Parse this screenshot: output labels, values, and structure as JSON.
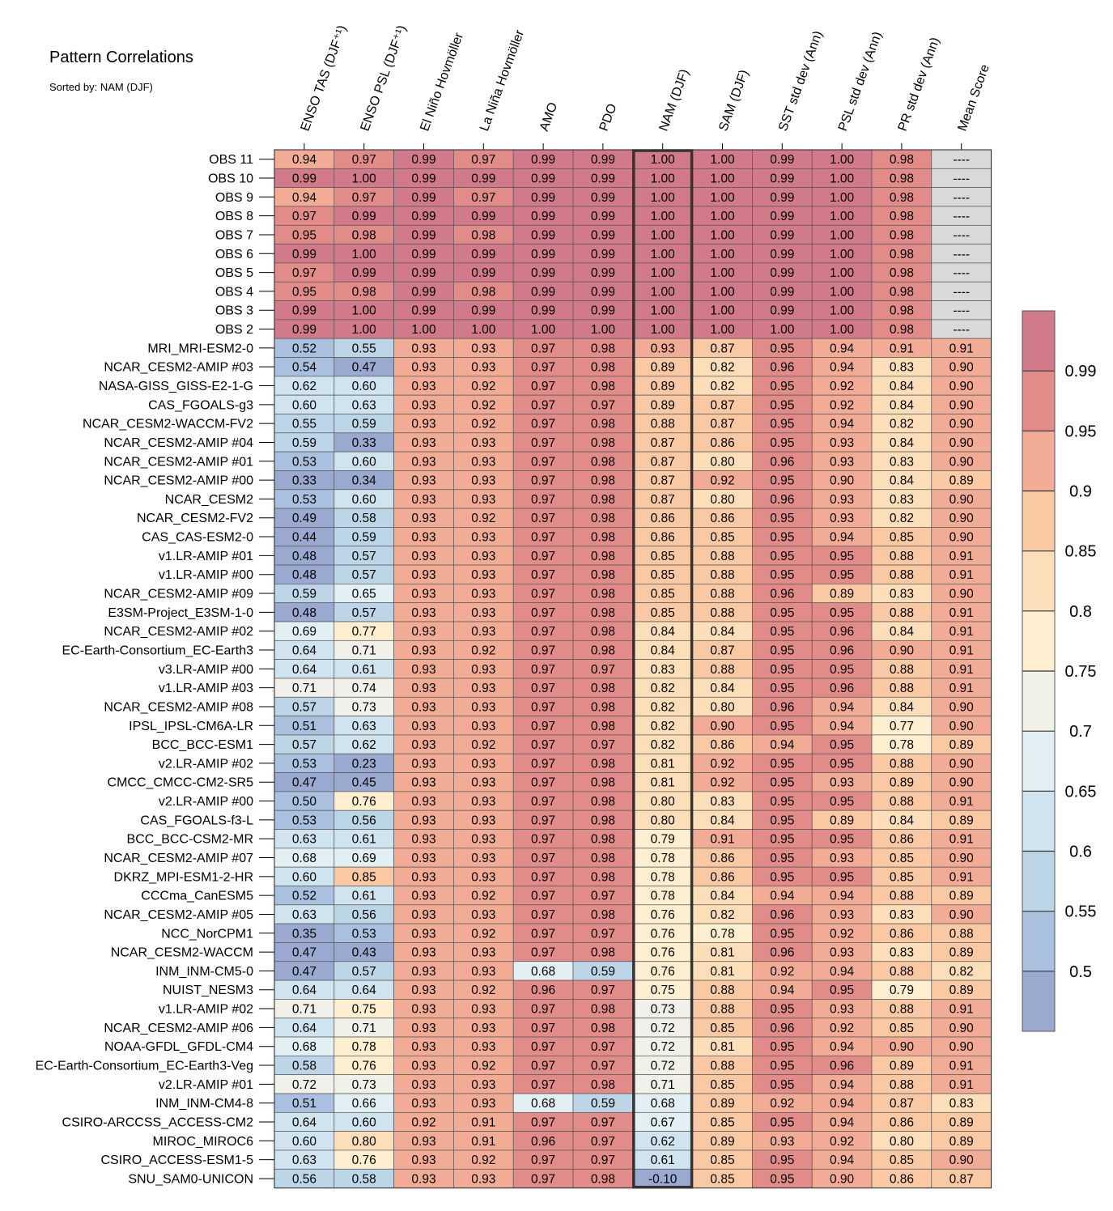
{
  "chart_data": {
    "type": "heatmap",
    "title": "Pattern Correlations",
    "subtitle": "Sorted by: NAM (DJF)",
    "columns": [
      "ENSO TAS (DJF⁺¹)",
      "ENSO PSL (DJF⁺¹)",
      "El Niño Hovmöller",
      "La Niña Hovmöller",
      "AMO",
      "PDO",
      "NAM (DJF)",
      "SAM (DJF)",
      "SST std dev (Ann)",
      "PSL std dev (Ann)",
      "PR std dev (Ann)",
      "Mean Score"
    ],
    "highlighted_column": "NAM (DJF)",
    "rows": [
      {
        "name": "OBS 11",
        "values": [
          "0.94",
          "0.97",
          "0.99",
          "0.97",
          "0.99",
          "0.99",
          "1.00",
          "1.00",
          "0.99",
          "1.00",
          "0.98",
          "----"
        ]
      },
      {
        "name": "OBS 10",
        "values": [
          "0.99",
          "1.00",
          "0.99",
          "0.99",
          "0.99",
          "0.99",
          "1.00",
          "1.00",
          "0.99",
          "1.00",
          "0.98",
          "----"
        ]
      },
      {
        "name": "OBS 9",
        "values": [
          "0.94",
          "0.97",
          "0.99",
          "0.97",
          "0.99",
          "0.99",
          "1.00",
          "1.00",
          "0.99",
          "1.00",
          "0.98",
          "----"
        ]
      },
      {
        "name": "OBS 8",
        "values": [
          "0.97",
          "0.99",
          "0.99",
          "0.99",
          "0.99",
          "0.99",
          "1.00",
          "1.00",
          "0.99",
          "1.00",
          "0.98",
          "----"
        ]
      },
      {
        "name": "OBS 7",
        "values": [
          "0.95",
          "0.98",
          "0.99",
          "0.98",
          "0.99",
          "0.99",
          "1.00",
          "1.00",
          "0.99",
          "1.00",
          "0.98",
          "----"
        ]
      },
      {
        "name": "OBS 6",
        "values": [
          "0.99",
          "1.00",
          "0.99",
          "0.99",
          "0.99",
          "0.99",
          "1.00",
          "1.00",
          "0.99",
          "1.00",
          "0.98",
          "----"
        ]
      },
      {
        "name": "OBS 5",
        "values": [
          "0.97",
          "0.99",
          "0.99",
          "0.99",
          "0.99",
          "0.99",
          "1.00",
          "1.00",
          "0.99",
          "1.00",
          "0.98",
          "----"
        ]
      },
      {
        "name": "OBS 4",
        "values": [
          "0.95",
          "0.98",
          "0.99",
          "0.98",
          "0.99",
          "0.99",
          "1.00",
          "1.00",
          "0.99",
          "1.00",
          "0.98",
          "----"
        ]
      },
      {
        "name": "OBS 3",
        "values": [
          "0.99",
          "1.00",
          "0.99",
          "0.99",
          "0.99",
          "0.99",
          "1.00",
          "1.00",
          "0.99",
          "1.00",
          "0.98",
          "----"
        ]
      },
      {
        "name": "OBS 2",
        "values": [
          "0.99",
          "1.00",
          "1.00",
          "1.00",
          "1.00",
          "1.00",
          "1.00",
          "1.00",
          "1.00",
          "1.00",
          "0.98",
          "----"
        ]
      },
      {
        "name": "MRI_MRI-ESM2-0",
        "values": [
          "0.52",
          "0.55",
          "0.93",
          "0.93",
          "0.97",
          "0.98",
          "0.93",
          "0.87",
          "0.95",
          "0.94",
          "0.91",
          "0.91"
        ]
      },
      {
        "name": "NCAR_CESM2-AMIP  #03",
        "values": [
          "0.54",
          "0.47",
          "0.93",
          "0.93",
          "0.97",
          "0.98",
          "0.89",
          "0.82",
          "0.96",
          "0.94",
          "0.83",
          "0.90"
        ]
      },
      {
        "name": "NASA-GISS_GISS-E2-1-G",
        "values": [
          "0.62",
          "0.60",
          "0.93",
          "0.92",
          "0.97",
          "0.98",
          "0.89",
          "0.82",
          "0.95",
          "0.92",
          "0.84",
          "0.90"
        ]
      },
      {
        "name": "CAS_FGOALS-g3",
        "values": [
          "0.60",
          "0.63",
          "0.93",
          "0.92",
          "0.97",
          "0.97",
          "0.89",
          "0.87",
          "0.95",
          "0.92",
          "0.84",
          "0.90"
        ]
      },
      {
        "name": "NCAR_CESM2-WACCM-FV2",
        "values": [
          "0.55",
          "0.59",
          "0.93",
          "0.92",
          "0.97",
          "0.98",
          "0.88",
          "0.87",
          "0.95",
          "0.94",
          "0.82",
          "0.90"
        ]
      },
      {
        "name": "NCAR_CESM2-AMIP  #04",
        "values": [
          "0.59",
          "0.33",
          "0.93",
          "0.93",
          "0.97",
          "0.98",
          "0.87",
          "0.86",
          "0.95",
          "0.93",
          "0.84",
          "0.90"
        ]
      },
      {
        "name": "NCAR_CESM2-AMIP  #01",
        "values": [
          "0.53",
          "0.60",
          "0.93",
          "0.93",
          "0.97",
          "0.98",
          "0.87",
          "0.80",
          "0.96",
          "0.93",
          "0.83",
          "0.90"
        ]
      },
      {
        "name": "NCAR_CESM2-AMIP  #00",
        "values": [
          "0.33",
          "0.34",
          "0.93",
          "0.93",
          "0.97",
          "0.98",
          "0.87",
          "0.92",
          "0.95",
          "0.90",
          "0.84",
          "0.89"
        ]
      },
      {
        "name": "NCAR_CESM2",
        "values": [
          "0.53",
          "0.60",
          "0.93",
          "0.93",
          "0.97",
          "0.98",
          "0.87",
          "0.80",
          "0.96",
          "0.93",
          "0.83",
          "0.90"
        ]
      },
      {
        "name": "NCAR_CESM2-FV2",
        "values": [
          "0.49",
          "0.58",
          "0.93",
          "0.92",
          "0.97",
          "0.98",
          "0.86",
          "0.86",
          "0.95",
          "0.93",
          "0.82",
          "0.90"
        ]
      },
      {
        "name": "CAS_CAS-ESM2-0",
        "values": [
          "0.44",
          "0.59",
          "0.93",
          "0.93",
          "0.97",
          "0.98",
          "0.86",
          "0.85",
          "0.95",
          "0.94",
          "0.85",
          "0.90"
        ]
      },
      {
        "name": "v1.LR-AMIP  #01",
        "values": [
          "0.48",
          "0.57",
          "0.93",
          "0.93",
          "0.97",
          "0.98",
          "0.85",
          "0.88",
          "0.95",
          "0.95",
          "0.88",
          "0.91"
        ]
      },
      {
        "name": "v1.LR-AMIP  #00",
        "values": [
          "0.48",
          "0.57",
          "0.93",
          "0.93",
          "0.97",
          "0.98",
          "0.85",
          "0.88",
          "0.95",
          "0.95",
          "0.88",
          "0.91"
        ]
      },
      {
        "name": "NCAR_CESM2-AMIP  #09",
        "values": [
          "0.59",
          "0.65",
          "0.93",
          "0.93",
          "0.97",
          "0.98",
          "0.85",
          "0.88",
          "0.96",
          "0.89",
          "0.83",
          "0.90"
        ]
      },
      {
        "name": "E3SM-Project_E3SM-1-0",
        "values": [
          "0.48",
          "0.57",
          "0.93",
          "0.93",
          "0.97",
          "0.98",
          "0.85",
          "0.88",
          "0.95",
          "0.95",
          "0.88",
          "0.91"
        ]
      },
      {
        "name": "NCAR_CESM2-AMIP  #02",
        "values": [
          "0.69",
          "0.77",
          "0.93",
          "0.93",
          "0.97",
          "0.98",
          "0.84",
          "0.84",
          "0.95",
          "0.96",
          "0.84",
          "0.91"
        ]
      },
      {
        "name": "EC-Earth-Consortium_EC-Earth3",
        "values": [
          "0.64",
          "0.71",
          "0.93",
          "0.92",
          "0.97",
          "0.98",
          "0.84",
          "0.87",
          "0.95",
          "0.96",
          "0.90",
          "0.91"
        ]
      },
      {
        "name": "v3.LR-AMIP  #00",
        "values": [
          "0.64",
          "0.61",
          "0.93",
          "0.93",
          "0.97",
          "0.97",
          "0.83",
          "0.88",
          "0.95",
          "0.95",
          "0.88",
          "0.91"
        ]
      },
      {
        "name": "v1.LR-AMIP  #03",
        "values": [
          "0.71",
          "0.74",
          "0.93",
          "0.93",
          "0.97",
          "0.98",
          "0.82",
          "0.84",
          "0.95",
          "0.96",
          "0.88",
          "0.91"
        ]
      },
      {
        "name": "NCAR_CESM2-AMIP  #08",
        "values": [
          "0.57",
          "0.73",
          "0.93",
          "0.93",
          "0.97",
          "0.98",
          "0.82",
          "0.80",
          "0.96",
          "0.94",
          "0.84",
          "0.90"
        ]
      },
      {
        "name": "IPSL_IPSL-CM6A-LR",
        "values": [
          "0.51",
          "0.63",
          "0.93",
          "0.93",
          "0.97",
          "0.98",
          "0.82",
          "0.90",
          "0.95",
          "0.94",
          "0.77",
          "0.90"
        ]
      },
      {
        "name": "BCC_BCC-ESM1",
        "values": [
          "0.57",
          "0.62",
          "0.93",
          "0.92",
          "0.97",
          "0.97",
          "0.82",
          "0.86",
          "0.94",
          "0.95",
          "0.78",
          "0.89"
        ]
      },
      {
        "name": "v2.LR-AMIP  #02",
        "values": [
          "0.53",
          "0.23",
          "0.93",
          "0.93",
          "0.97",
          "0.98",
          "0.81",
          "0.92",
          "0.95",
          "0.95",
          "0.88",
          "0.90"
        ]
      },
      {
        "name": "CMCC_CMCC-CM2-SR5",
        "values": [
          "0.47",
          "0.45",
          "0.93",
          "0.93",
          "0.97",
          "0.98",
          "0.81",
          "0.92",
          "0.95",
          "0.93",
          "0.89",
          "0.90"
        ]
      },
      {
        "name": "v2.LR-AMIP  #00",
        "values": [
          "0.50",
          "0.76",
          "0.93",
          "0.93",
          "0.97",
          "0.98",
          "0.80",
          "0.83",
          "0.95",
          "0.95",
          "0.88",
          "0.91"
        ]
      },
      {
        "name": "CAS_FGOALS-f3-L",
        "values": [
          "0.53",
          "0.56",
          "0.93",
          "0.93",
          "0.97",
          "0.98",
          "0.80",
          "0.84",
          "0.95",
          "0.89",
          "0.84",
          "0.89"
        ]
      },
      {
        "name": "BCC_BCC-CSM2-MR",
        "values": [
          "0.63",
          "0.61",
          "0.93",
          "0.93",
          "0.97",
          "0.98",
          "0.79",
          "0.91",
          "0.95",
          "0.95",
          "0.86",
          "0.91"
        ]
      },
      {
        "name": "NCAR_CESM2-AMIP  #07",
        "values": [
          "0.68",
          "0.69",
          "0.93",
          "0.93",
          "0.97",
          "0.98",
          "0.78",
          "0.86",
          "0.95",
          "0.93",
          "0.85",
          "0.90"
        ]
      },
      {
        "name": "DKRZ_MPI-ESM1-2-HR",
        "values": [
          "0.60",
          "0.85",
          "0.93",
          "0.93",
          "0.97",
          "0.98",
          "0.78",
          "0.86",
          "0.95",
          "0.95",
          "0.85",
          "0.91"
        ]
      },
      {
        "name": "CCCma_CanESM5",
        "values": [
          "0.52",
          "0.61",
          "0.93",
          "0.92",
          "0.97",
          "0.97",
          "0.78",
          "0.84",
          "0.94",
          "0.94",
          "0.88",
          "0.89"
        ]
      },
      {
        "name": "NCAR_CESM2-AMIP  #05",
        "values": [
          "0.63",
          "0.56",
          "0.93",
          "0.93",
          "0.97",
          "0.98",
          "0.76",
          "0.82",
          "0.96",
          "0.93",
          "0.83",
          "0.90"
        ]
      },
      {
        "name": "NCC_NorCPM1",
        "values": [
          "0.35",
          "0.53",
          "0.93",
          "0.92",
          "0.97",
          "0.97",
          "0.76",
          "0.78",
          "0.95",
          "0.92",
          "0.86",
          "0.88"
        ]
      },
      {
        "name": "NCAR_CESM2-WACCM",
        "values": [
          "0.47",
          "0.43",
          "0.93",
          "0.93",
          "0.97",
          "0.98",
          "0.76",
          "0.81",
          "0.96",
          "0.93",
          "0.83",
          "0.89"
        ]
      },
      {
        "name": "INM_INM-CM5-0",
        "values": [
          "0.47",
          "0.57",
          "0.93",
          "0.93",
          "0.68",
          "0.59",
          "0.76",
          "0.81",
          "0.92",
          "0.94",
          "0.88",
          "0.82"
        ]
      },
      {
        "name": "NUIST_NESM3",
        "values": [
          "0.64",
          "0.64",
          "0.93",
          "0.92",
          "0.96",
          "0.97",
          "0.75",
          "0.88",
          "0.94",
          "0.95",
          "0.79",
          "0.89"
        ]
      },
      {
        "name": "v1.LR-AMIP  #02",
        "values": [
          "0.71",
          "0.75",
          "0.93",
          "0.93",
          "0.97",
          "0.98",
          "0.73",
          "0.88",
          "0.95",
          "0.93",
          "0.88",
          "0.91"
        ]
      },
      {
        "name": "NCAR_CESM2-AMIP  #06",
        "values": [
          "0.64",
          "0.71",
          "0.93",
          "0.93",
          "0.97",
          "0.98",
          "0.72",
          "0.85",
          "0.96",
          "0.92",
          "0.85",
          "0.90"
        ]
      },
      {
        "name": "NOAA-GFDL_GFDL-CM4",
        "values": [
          "0.68",
          "0.78",
          "0.93",
          "0.93",
          "0.97",
          "0.97",
          "0.72",
          "0.81",
          "0.95",
          "0.94",
          "0.90",
          "0.90"
        ]
      },
      {
        "name": "EC-Earth-Consortium_EC-Earth3-Veg",
        "values": [
          "0.58",
          "0.76",
          "0.93",
          "0.92",
          "0.97",
          "0.97",
          "0.72",
          "0.88",
          "0.95",
          "0.96",
          "0.89",
          "0.91"
        ]
      },
      {
        "name": "v2.LR-AMIP  #01",
        "values": [
          "0.72",
          "0.73",
          "0.93",
          "0.93",
          "0.97",
          "0.98",
          "0.71",
          "0.85",
          "0.95",
          "0.94",
          "0.88",
          "0.91"
        ]
      },
      {
        "name": "INM_INM-CM4-8",
        "values": [
          "0.51",
          "0.66",
          "0.93",
          "0.93",
          "0.68",
          "0.59",
          "0.68",
          "0.89",
          "0.92",
          "0.94",
          "0.87",
          "0.83"
        ]
      },
      {
        "name": "CSIRO-ARCCSS_ACCESS-CM2",
        "values": [
          "0.64",
          "0.60",
          "0.92",
          "0.91",
          "0.97",
          "0.97",
          "0.67",
          "0.85",
          "0.95",
          "0.94",
          "0.86",
          "0.89"
        ]
      },
      {
        "name": "MIROC_MIROC6",
        "values": [
          "0.60",
          "0.80",
          "0.93",
          "0.91",
          "0.96",
          "0.97",
          "0.62",
          "0.89",
          "0.93",
          "0.92",
          "0.80",
          "0.89"
        ]
      },
      {
        "name": "CSIRO_ACCESS-ESM1-5",
        "values": [
          "0.63",
          "0.76",
          "0.93",
          "0.92",
          "0.97",
          "0.97",
          "0.61",
          "0.85",
          "0.95",
          "0.94",
          "0.85",
          "0.90"
        ]
      },
      {
        "name": "SNU_SAM0-UNICON",
        "values": [
          "0.56",
          "0.58",
          "0.93",
          "0.93",
          "0.97",
          "0.98",
          "-0.10",
          "0.85",
          "0.95",
          "0.90",
          "0.86",
          "0.87"
        ]
      }
    ],
    "missing_color": "#d9d9d9",
    "colorbar": {
      "ticks": [
        "0.5",
        "0.55",
        "0.6",
        "0.65",
        "0.7",
        "0.75",
        "0.8",
        "0.85",
        "0.9",
        "0.95",
        "0.99"
      ],
      "bins": [
        {
          "min": -1.0,
          "max": 0.5,
          "color": "#9aa9d0"
        },
        {
          "min": 0.5,
          "max": 0.55,
          "color": "#a9c1de"
        },
        {
          "min": 0.55,
          "max": 0.6,
          "color": "#bcd6e8"
        },
        {
          "min": 0.6,
          "max": 0.65,
          "color": "#cfe4ee"
        },
        {
          "min": 0.65,
          "max": 0.7,
          "color": "#e2eff3"
        },
        {
          "min": 0.7,
          "max": 0.75,
          "color": "#f1f1e9"
        },
        {
          "min": 0.75,
          "max": 0.8,
          "color": "#fdefd0"
        },
        {
          "min": 0.8,
          "max": 0.85,
          "color": "#fcdfb8"
        },
        {
          "min": 0.85,
          "max": 0.9,
          "color": "#f9c9a4"
        },
        {
          "min": 0.9,
          "max": 0.95,
          "color": "#f2ac96"
        },
        {
          "min": 0.95,
          "max": 0.99,
          "color": "#e28c89"
        },
        {
          "min": 0.99,
          "max": 1.01,
          "color": "#d17a8a"
        }
      ]
    }
  }
}
